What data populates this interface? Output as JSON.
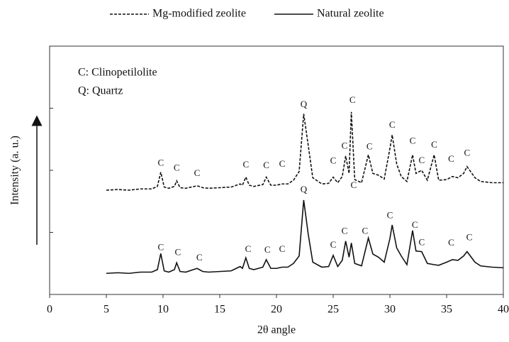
{
  "chart_data": {
    "type": "line",
    "xlabel": "2θ angle",
    "ylabel": "Intensity (a. u.)",
    "xlim": [
      0,
      40
    ],
    "xticks": [
      0,
      5,
      10,
      15,
      20,
      25,
      30,
      35,
      40
    ],
    "ylim": [
      0,
      4
    ],
    "yticks": [
      1,
      2,
      3
    ],
    "legend": "top",
    "notes": [
      "C: Clinopetilolite",
      "Q: Quartz"
    ],
    "x": [
      5,
      6,
      7,
      8,
      9,
      9.5,
      9.8,
      10.1,
      10.5,
      11,
      11.2,
      11.5,
      12,
      13,
      13.5,
      14,
      15,
      16,
      16.8,
      17,
      17.3,
      17.6,
      18,
      18.8,
      19.1,
      19.5,
      20,
      20.5,
      21,
      21.5,
      22,
      22.4,
      22.8,
      23.2,
      24,
      24.6,
      25,
      25.4,
      25.8,
      26.1,
      26.4,
      26.6,
      26.9,
      27.5,
      28.1,
      28.5,
      29,
      29.5,
      30,
      30.2,
      30.6,
      31,
      31.5,
      32,
      32.3,
      32.8,
      33.3,
      33.9,
      34.3,
      35,
      35.5,
      36,
      36.5,
      36.8,
      37.5,
      38,
      39,
      40
    ],
    "series": [
      {
        "name": "Mg-modified zeolite",
        "color": "#111111",
        "dashed": true,
        "values": [
          1.68,
          1.69,
          1.68,
          1.7,
          1.7,
          1.74,
          1.97,
          1.73,
          1.71,
          1.74,
          1.83,
          1.72,
          1.71,
          1.75,
          1.72,
          1.71,
          1.72,
          1.73,
          1.78,
          1.76,
          1.89,
          1.76,
          1.74,
          1.77,
          1.89,
          1.76,
          1.76,
          1.78,
          1.78,
          1.84,
          1.98,
          2.91,
          2.4,
          1.88,
          1.78,
          1.79,
          1.89,
          1.8,
          1.9,
          2.23,
          1.95,
          2.94,
          1.85,
          1.8,
          2.25,
          1.95,
          1.92,
          1.86,
          2.35,
          2.57,
          2.1,
          1.9,
          1.82,
          2.25,
          1.95,
          2.0,
          1.84,
          2.25,
          1.84,
          1.85,
          1.9,
          1.88,
          1.95,
          2.06,
          1.88,
          1.82,
          1.8,
          1.8
        ]
      },
      {
        "name": "Natural zeolite",
        "color": "#111111",
        "dashed": false,
        "values": [
          0.34,
          0.35,
          0.34,
          0.36,
          0.36,
          0.4,
          0.66,
          0.38,
          0.36,
          0.4,
          0.51,
          0.37,
          0.36,
          0.42,
          0.37,
          0.36,
          0.37,
          0.38,
          0.45,
          0.42,
          0.59,
          0.42,
          0.4,
          0.44,
          0.56,
          0.42,
          0.42,
          0.44,
          0.44,
          0.5,
          0.62,
          1.52,
          0.97,
          0.52,
          0.44,
          0.45,
          0.63,
          0.45,
          0.55,
          0.86,
          0.6,
          0.83,
          0.5,
          0.46,
          0.91,
          0.65,
          0.6,
          0.52,
          0.9,
          1.12,
          0.75,
          0.62,
          0.48,
          1.03,
          0.7,
          0.69,
          0.5,
          0.48,
          0.47,
          0.52,
          0.56,
          0.55,
          0.62,
          0.69,
          0.52,
          0.46,
          0.44,
          0.43
        ]
      }
    ],
    "peak_labels": [
      {
        "text": "C",
        "x": 9.8,
        "y": 2.11
      },
      {
        "text": "C",
        "x": 11.2,
        "y": 2.03
      },
      {
        "text": "C",
        "x": 13,
        "y": 1.94
      },
      {
        "text": "C",
        "x": 17.3,
        "y": 2.08
      },
      {
        "text": "C",
        "x": 19.1,
        "y": 2.07
      },
      {
        "text": "C",
        "x": 20.5,
        "y": 2.09
      },
      {
        "text": "Q",
        "x": 22.4,
        "y": 3.05
      },
      {
        "text": "C",
        "x": 25,
        "y": 2.14
      },
      {
        "text": "C",
        "x": 26,
        "y": 2.38
      },
      {
        "text": "C",
        "x": 26.7,
        "y": 3.12
      },
      {
        "text": "C",
        "x": 26.8,
        "y": 1.75
      },
      {
        "text": "C",
        "x": 28.2,
        "y": 2.37
      },
      {
        "text": "C",
        "x": 30.2,
        "y": 2.72
      },
      {
        "text": "C",
        "x": 32,
        "y": 2.46
      },
      {
        "text": "C",
        "x": 32.8,
        "y": 2.15
      },
      {
        "text": "C",
        "x": 33.9,
        "y": 2.4
      },
      {
        "text": "C",
        "x": 35.4,
        "y": 2.17
      },
      {
        "text": "C",
        "x": 36.8,
        "y": 2.27
      },
      {
        "text": "C",
        "x": 9.8,
        "y": 0.75
      },
      {
        "text": "C",
        "x": 11.3,
        "y": 0.67
      },
      {
        "text": "C",
        "x": 13.2,
        "y": 0.58
      },
      {
        "text": "C",
        "x": 17.5,
        "y": 0.72
      },
      {
        "text": "C",
        "x": 19.2,
        "y": 0.71
      },
      {
        "text": "C",
        "x": 20.5,
        "y": 0.72
      },
      {
        "text": "Q",
        "x": 22.4,
        "y": 1.68
      },
      {
        "text": "C",
        "x": 25,
        "y": 0.79
      },
      {
        "text": "C",
        "x": 26,
        "y": 1.01
      },
      {
        "text": "C",
        "x": 27.8,
        "y": 1.01
      },
      {
        "text": "C",
        "x": 30,
        "y": 1.26
      },
      {
        "text": "C",
        "x": 32.2,
        "y": 1.11
      },
      {
        "text": "C",
        "x": 32.8,
        "y": 0.83
      },
      {
        "text": "C",
        "x": 35.4,
        "y": 0.82
      },
      {
        "text": "C",
        "x": 37,
        "y": 0.91
      }
    ]
  }
}
